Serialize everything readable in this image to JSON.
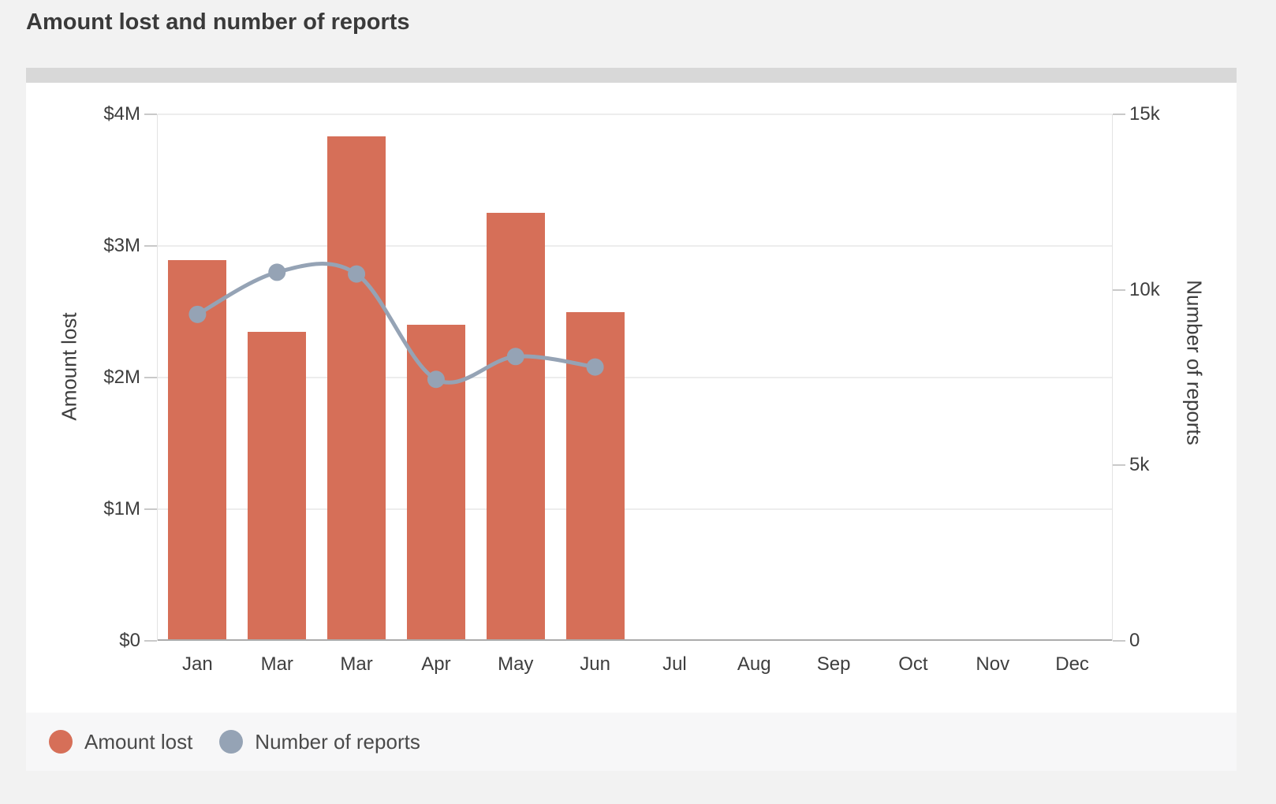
{
  "header": {
    "title": "Amount lost and number of reports"
  },
  "chart_data": {
    "type": "bar+line",
    "title": "Amount lost and number of reports",
    "categories": [
      "Jan",
      "Mar",
      "Mar",
      "Apr",
      "May",
      "Jun",
      "Jul",
      "Aug",
      "Sep",
      "Oct",
      "Nov",
      "Dec"
    ],
    "series": [
      {
        "name": "Amount lost",
        "type": "bar",
        "yaxis": "left",
        "color": "#d66f58",
        "values_usd": [
          2890000,
          2350000,
          3830000,
          2400000,
          3250000,
          2500000,
          null,
          null,
          null,
          null,
          null,
          null
        ]
      },
      {
        "name": "Number of reports",
        "type": "line",
        "yaxis": "right",
        "color": "#95a3b5",
        "values_reports": [
          9300,
          10500,
          10450,
          7450,
          8100,
          7800,
          null,
          null,
          null,
          null,
          null,
          null
        ]
      }
    ],
    "left_axis": {
      "title": "Amount lost",
      "min": 0,
      "max": 4000000,
      "ticks": [
        "$0",
        "$1M",
        "$2M",
        "$3M",
        "$4M"
      ]
    },
    "right_axis": {
      "title": "Number of reports",
      "min": 0,
      "max": 15000,
      "ticks": [
        "0",
        "5k",
        "10k",
        "15k"
      ]
    },
    "grid": "horizontal-only",
    "legend_position": "bottom-left",
    "legend": [
      {
        "label": "Amount lost",
        "color": "#d66f58"
      },
      {
        "label": "Number of reports",
        "color": "#95a3b5"
      }
    ]
  }
}
